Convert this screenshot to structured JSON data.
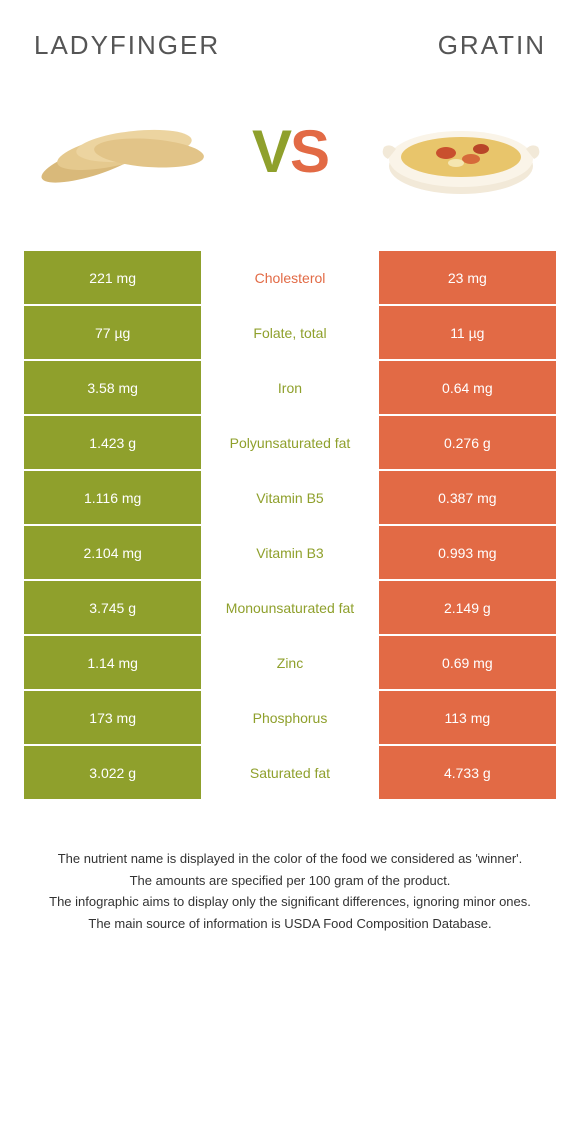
{
  "title_left": "Ladyfinger",
  "title_right": "Gratin",
  "vs": {
    "v": "V",
    "s": "S"
  },
  "colors": {
    "green": "#8fa02c",
    "orange": "#e26a45"
  },
  "rows": [
    {
      "left": "221 mg",
      "label": "Cholesterol",
      "right": "23 mg",
      "winner": "orange"
    },
    {
      "left": "77 µg",
      "label": "Folate, total",
      "right": "11 µg",
      "winner": "green"
    },
    {
      "left": "3.58 mg",
      "label": "Iron",
      "right": "0.64 mg",
      "winner": "green"
    },
    {
      "left": "1.423 g",
      "label": "Polyunsaturated fat",
      "right": "0.276 g",
      "winner": "green"
    },
    {
      "left": "1.116 mg",
      "label": "Vitamin B5",
      "right": "0.387 mg",
      "winner": "green"
    },
    {
      "left": "2.104 mg",
      "label": "Vitamin B3",
      "right": "0.993 mg",
      "winner": "green"
    },
    {
      "left": "3.745 g",
      "label": "Monounsaturated fat",
      "right": "2.149 g",
      "winner": "green"
    },
    {
      "left": "1.14 mg",
      "label": "Zinc",
      "right": "0.69 mg",
      "winner": "green"
    },
    {
      "left": "173 mg",
      "label": "Phosphorus",
      "right": "113 mg",
      "winner": "green"
    },
    {
      "left": "3.022 g",
      "label": "Saturated fat",
      "right": "4.733 g",
      "winner": "green"
    }
  ],
  "footer": [
    "The nutrient name is displayed in the color of the food we considered as 'winner'.",
    "The amounts are specified per 100 gram of the product.",
    "The infographic aims to display only the significant differences, ignoring minor ones.",
    "The main source of information is USDA Food Composition Database."
  ]
}
